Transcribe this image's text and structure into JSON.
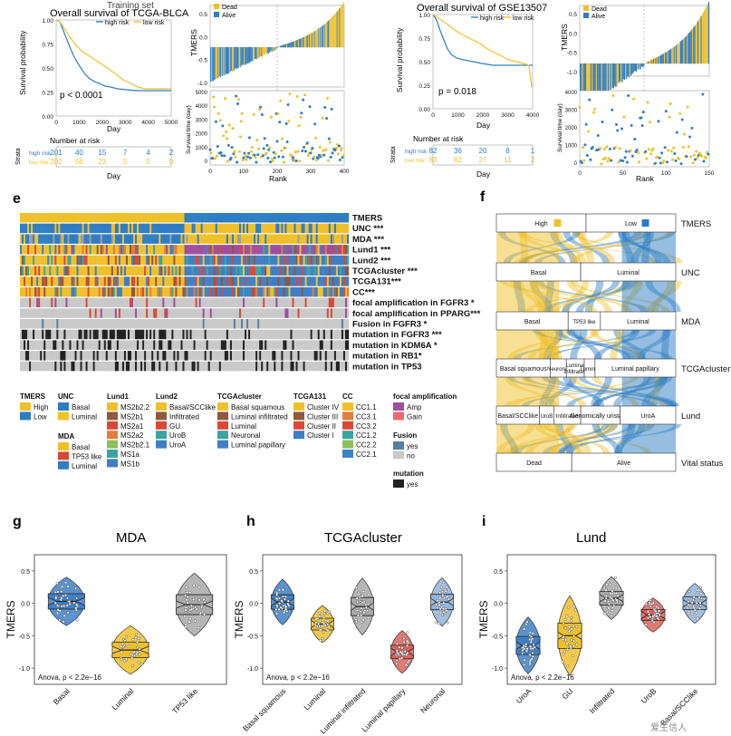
{
  "colors": {
    "high": "#f0c02a",
    "low": "#2e7dc4",
    "dead": "#f0c02a",
    "alive": "#2e7dc4",
    "basal": "#2e7dc4",
    "luminal": "#f0c02a",
    "tp53": "#9e9e9e",
    "grey": "#bdbdbd",
    "black": "#222"
  },
  "panel_a": {
    "title_partial": "Training set",
    "title": "Overall survival of TCGA-BLCA",
    "legend": [
      "high risk",
      "low risk"
    ],
    "ylabel": "Survival probability",
    "xlabel": "Day",
    "pvalue": "p < 0.0001",
    "yticks": [
      "1.00",
      "0.75",
      "0.50",
      "0.25",
      "0.00"
    ],
    "xticks": [
      "0",
      "1000",
      "2000",
      "3000",
      "4000",
      "5000"
    ],
    "risk_title": "Number at risk",
    "strata_label": "Strata",
    "risk_rows": [
      {
        "name": "high risk",
        "values": [
          "201",
          "40",
          "15",
          "7",
          "4",
          "2"
        ]
      },
      {
        "name": "low risk",
        "values": [
          "202",
          "56",
          "23",
          "5",
          "0",
          "0"
        ]
      }
    ]
  },
  "panel_b": {
    "legend": [
      "Dead",
      "Alive"
    ],
    "ylabel_top": "TMERS",
    "ylabel_bottom": "Survival time (day)",
    "xlabel": "Rank",
    "yticks_top": [
      "0.5",
      "0.0",
      "-0.5",
      "-1.0"
    ],
    "yticks_bottom": [
      "5000",
      "4000",
      "3000",
      "2000",
      "1000",
      "0"
    ],
    "xticks": [
      "0",
      "100",
      "200",
      "300",
      "400"
    ]
  },
  "panel_c": {
    "title": "Overall survival of GSE13507",
    "legend": [
      "high risk",
      "low risk"
    ],
    "ylabel": "Survival probability",
    "xlabel": "Day",
    "pvalue": "p = 0.018",
    "yticks": [
      "1.00",
      "0.75",
      "0.50",
      "0.25",
      "0.00"
    ],
    "xticks": [
      "0",
      "1000",
      "2000",
      "3000",
      "4000"
    ],
    "risk_title": "Number at risk",
    "strata_label": "Strata",
    "risk_rows": [
      {
        "name": "high risk",
        "values": [
          "82",
          "36",
          "20",
          "8",
          "1"
        ]
      },
      {
        "name": "low risk",
        "values": [
          "83",
          "62",
          "27",
          "11",
          "2"
        ]
      }
    ]
  },
  "panel_d": {
    "legend": [
      "Dead",
      "Alive"
    ],
    "ylabel_top": "TMERS",
    "ylabel_bottom": "Survival time (day)",
    "xlabel": "Rank",
    "yticks_top": [
      "0.5",
      "0.0",
      "-0.5",
      "-1.0"
    ],
    "yticks_bottom": [
      "4000",
      "3000",
      "2000",
      "1000",
      "0"
    ],
    "xticks": [
      "0",
      "50",
      "100",
      "150"
    ]
  },
  "panel_e": {
    "letter": "e",
    "tracks": [
      "TMERS",
      "UNC ***",
      "MDA ***",
      "Lund1 ***",
      "Lund2 ***",
      "TCGAcluster ***",
      "TCGA131***",
      "CC***",
      "focal amplification in FGFR3 *",
      "focal amplification in PPARG***",
      "Fusion in FGFR3 *",
      "mutation in FGFR3 ***",
      "mutation in KDM6A *",
      "mutation in RB1*",
      "mutation in TP53"
    ],
    "legend": [
      {
        "title": "TMERS",
        "items": [
          "High",
          "Low"
        ]
      },
      {
        "title": "UNC",
        "items": [
          "Basal",
          "Luminal"
        ]
      },
      {
        "title": "MDA",
        "items": [
          "Basal",
          "TP53 like",
          "Luminal"
        ]
      },
      {
        "title": "Lund1",
        "items": [
          "MS2b2.2",
          "MS2b1",
          "MS2a1",
          "MS2a2",
          "MS2b2.1",
          "MS1a",
          "MS1b"
        ]
      },
      {
        "title": "Lund2",
        "items": [
          "Basal/SCClike",
          "Infiltrated",
          "GU",
          "UroB",
          "UroA"
        ]
      },
      {
        "title": "TCGAcluster",
        "items": [
          "Basal squamous",
          "Luminal infiltrated",
          "Luminal",
          "Neuronal",
          "Luminal papillary"
        ]
      },
      {
        "title": "TCGA131",
        "items": [
          "Cluster IV",
          "Cluster III",
          "Cluster II",
          "Cluster I"
        ]
      },
      {
        "title": "CC",
        "items": [
          "CC1.1",
          "CC3.1",
          "CC3.2",
          "CC1.2",
          "CC2.2",
          "CC2.1"
        ]
      },
      {
        "title": "focal amplification",
        "items": [
          "Amp",
          "Gain"
        ]
      },
      {
        "title": "Fusion",
        "items": [
          "yes",
          "no"
        ]
      },
      {
        "title": "mutation",
        "items": [
          "yes"
        ]
      }
    ]
  },
  "panel_f": {
    "letter": "f",
    "rows": [
      {
        "name": "TMERS",
        "boxes": [
          "High",
          "Low"
        ]
      },
      {
        "name": "UNC",
        "boxes": [
          "Basal",
          "Luminal"
        ]
      },
      {
        "name": "MDA",
        "boxes": [
          "Basal",
          "TP53 like",
          "Luminal"
        ]
      },
      {
        "name": "TCGAcluster",
        "boxes": [
          "Basal squamous",
          "Neuronal",
          "Luminal infiltrated",
          "Luminal",
          "Luminal papillary"
        ]
      },
      {
        "name": "Lund",
        "boxes": [
          "Basal/SCClike",
          "UroB",
          "Infiltrated",
          "Genomically unstable",
          "UroA"
        ]
      },
      {
        "name": "Vital status",
        "boxes": [
          "Dead",
          "Alive"
        ]
      }
    ]
  },
  "panel_g": {
    "letter": "g",
    "title": "MDA",
    "ylabel": "TMERS",
    "stat": "Anova, p < 2.2e−16",
    "groups": [
      "Basal",
      "Luminal",
      "TP53 like"
    ],
    "yticks": [
      "0.5",
      "0.0",
      "-0.5",
      "-1.0"
    ]
  },
  "panel_h": {
    "letter": "h",
    "title": "TCGAcluster",
    "ylabel": "TMERS",
    "stat": "Anova, p < 2.2e−16",
    "groups": [
      "Basal squamous",
      "Luminal",
      "Luminal infiltrated",
      "Luminal papillary",
      "Neuronal"
    ],
    "yticks": [
      "0.5",
      "0.0",
      "-0.5",
      "-1.0"
    ]
  },
  "panel_i": {
    "letter": "i",
    "title": "Lund",
    "ylabel": "TMERS",
    "stat": "Anova, p < 2.2e−16",
    "groups": [
      "UroA",
      "GU",
      "Infiltrated",
      "UroB",
      "Basal/SCClike"
    ],
    "yticks": [
      "0.5",
      "0.0",
      "-0.5",
      "-1.0"
    ]
  },
  "watermark": "爱生信人"
}
